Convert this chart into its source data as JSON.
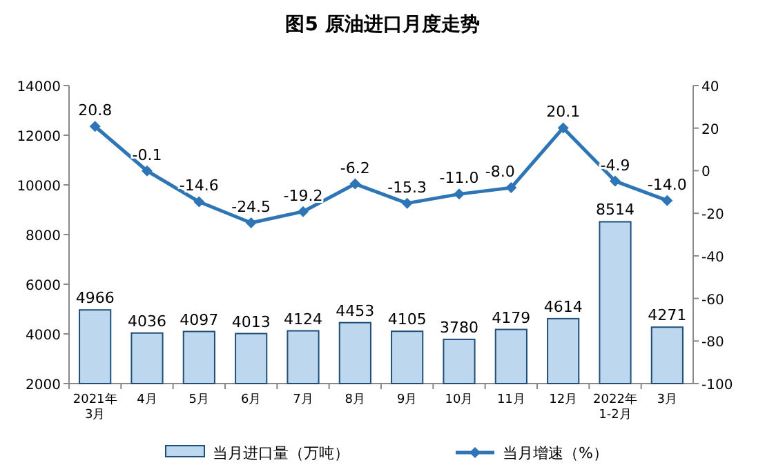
{
  "chart_data": {
    "type": "bar",
    "title": "图5  原油进口月度走势",
    "categories": [
      "2021年\n3月",
      "4月",
      "5月",
      "6月",
      "7月",
      "8月",
      "9月",
      "10月",
      "11月",
      "12月",
      "2022年\n1-2月",
      "3月"
    ],
    "series": [
      {
        "name": "当月进口量（万吨）",
        "color": "#bdd7ee",
        "values": [
          4966,
          4036,
          4097,
          4013,
          4124,
          4453,
          4105,
          3780,
          4179,
          4614,
          8514,
          4271
        ],
        "value_labels": [
          "4966",
          "4036",
          "4097",
          "4013",
          "4124",
          "4453",
          "4105",
          "3780",
          "4179",
          "4614",
          "8514",
          "4271"
        ]
      },
      {
        "name": "当月增速（%）",
        "type": "line",
        "axis": "y2",
        "color": "#2e75b6",
        "marker": "diamond",
        "values": [
          20.8,
          -0.1,
          -14.6,
          -24.5,
          -19.2,
          -6.2,
          -15.3,
          -11.0,
          -8.0,
          20.1,
          -4.9,
          -14.0
        ],
        "value_labels": [
          "20.8",
          "-0.1",
          "-14.6",
          "-24.5",
          "-19.2",
          "-6.2",
          "-15.3",
          "-11.0",
          "-8.0",
          "20.1",
          "-4.9",
          "-14.0"
        ]
      }
    ],
    "ylim": [
      2000,
      14000
    ],
    "yticks": [
      2000,
      4000,
      6000,
      8000,
      10000,
      12000,
      14000
    ],
    "y2lim": [
      -100,
      40
    ],
    "y2ticks": [
      -100,
      -80,
      -60,
      -40,
      -20,
      0,
      20,
      40
    ],
    "legend": "bottom",
    "grid": false
  }
}
